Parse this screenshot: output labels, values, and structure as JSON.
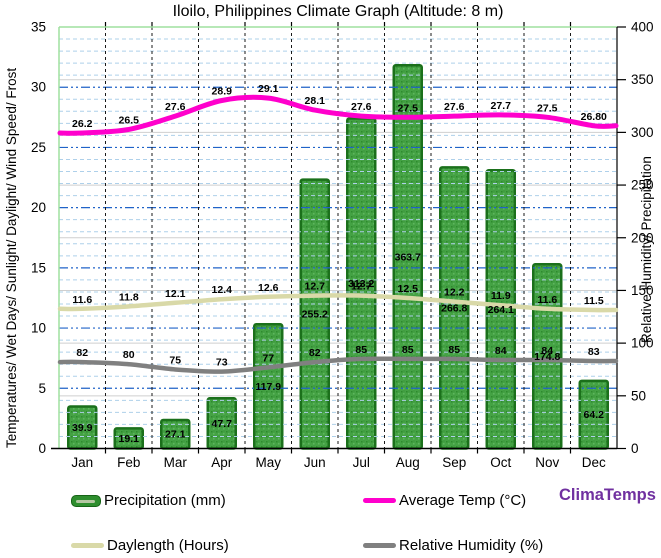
{
  "title": "Iloilo, Philippines Climate Graph (Altitude: 8 m)",
  "branding": {
    "label": "ClimaTemps",
    "color": "#7030a0"
  },
  "axes": {
    "left_title": "Temperatures/ Wet Days/ Sunlight/ Daylight/ Wind Speed/ Frost",
    "right_title": "Relative Humidity/ Precipitation",
    "left_ticks": [
      0,
      5,
      10,
      15,
      20,
      25,
      30,
      35
    ],
    "right_ticks": [
      0,
      50,
      100,
      150,
      200,
      250,
      300,
      350,
      400
    ]
  },
  "chart_data": {
    "type": "bar+line combo",
    "title": "Iloilo, Philippines Climate Graph (Altitude: 8 m)",
    "categories": [
      "Jan",
      "Feb",
      "Mar",
      "Apr",
      "May",
      "Jun",
      "Jul",
      "Aug",
      "Sep",
      "Oct",
      "Nov",
      "Dec"
    ],
    "left_axis_label": "Temperatures/ Wet Days/ Sunlight/ Daylight/ Wind Speed/ Frost",
    "right_axis_label": "Relative Humidity/ Precipitation",
    "left_ylim": [
      0,
      35
    ],
    "right_ylim": [
      0,
      400
    ],
    "grid": "horizontal: light dashed every 1 left-unit, blue dash-dot every 5 left-units, light gray solid every 50 right-units; vertical: black dashed at month boundaries",
    "legend_position": "bottom",
    "series": [
      {
        "name": "Precipitation (mm)",
        "type": "bar",
        "axis": "right",
        "color": "#44a244",
        "border_color": "#1b701b",
        "values": [
          39.9,
          19.1,
          27.1,
          47.7,
          117.9,
          255.2,
          313.2,
          363.7,
          266.8,
          264.1,
          174.8,
          64.2
        ]
      },
      {
        "name": "Average Temp (°C)",
        "type": "line",
        "axis": "left",
        "color": "#ff00cc",
        "values": [
          26.2,
          26.5,
          27.6,
          28.9,
          29.1,
          28.1,
          27.6,
          27.5,
          27.6,
          27.7,
          27.5,
          26.8
        ],
        "labels": [
          "26.2",
          "26.5",
          "27.6",
          "28.9",
          "29.1",
          "28.1",
          "27.6",
          "27.5",
          "27.6",
          "27.7",
          "27.5",
          "26.80"
        ]
      },
      {
        "name": "Daylength (Hours)",
        "type": "line",
        "axis": "left",
        "color": "#d9d9a8",
        "values": [
          11.6,
          11.8,
          12.1,
          12.4,
          12.6,
          12.7,
          12.7,
          12.5,
          12.2,
          11.9,
          11.6,
          11.5
        ]
      },
      {
        "name": "Relative Humidity (%)",
        "type": "line",
        "axis": "right",
        "color": "#808080",
        "values": [
          82,
          80,
          75,
          73,
          77,
          82,
          85,
          85,
          85,
          84,
          84,
          83
        ]
      }
    ]
  },
  "legend": {
    "items": [
      {
        "label": "Precipitation (mm)",
        "swatch": "bar",
        "color": "#2e8e2e"
      },
      {
        "label": "Average Temp (°C)",
        "swatch": "line",
        "color": "#ff00cc"
      },
      {
        "label": "Daylength (Hours)",
        "swatch": "line",
        "color": "#d9d9a8"
      },
      {
        "label": "Relative Humidity (%)",
        "swatch": "line",
        "color": "#808080"
      }
    ]
  }
}
